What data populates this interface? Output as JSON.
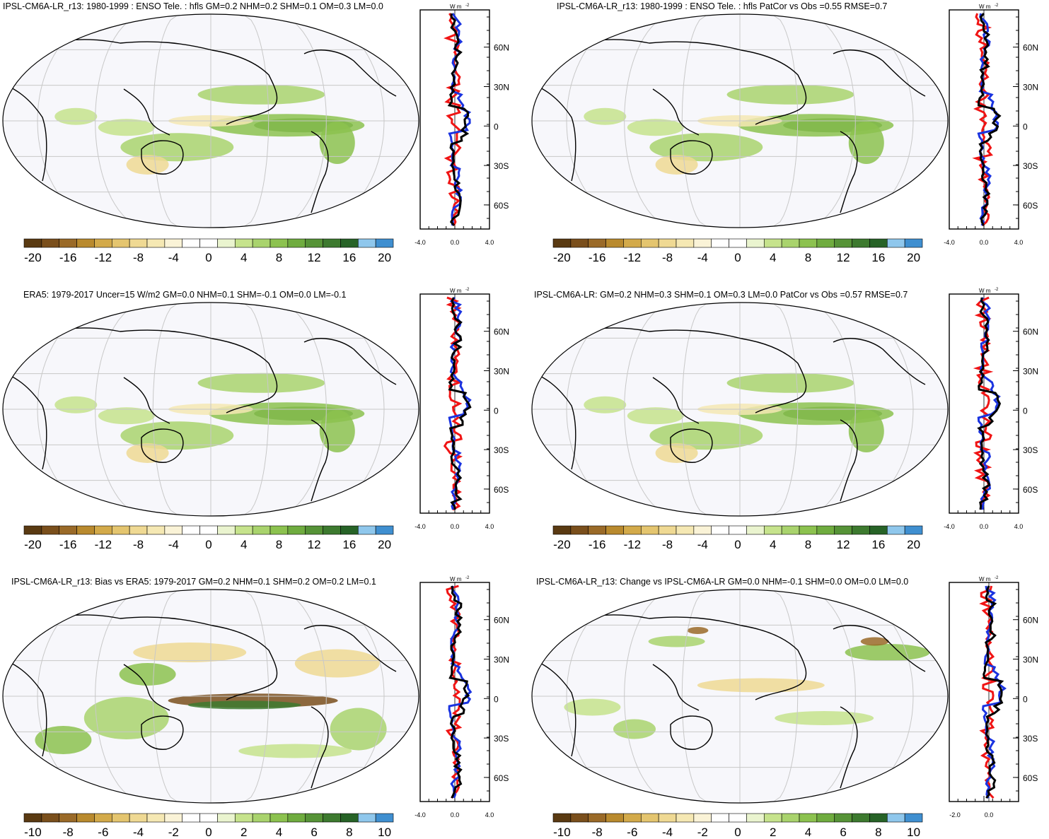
{
  "colorbar": {
    "colors": [
      "#5a3a12",
      "#7a4f1c",
      "#9a6a28",
      "#b98a2e",
      "#d3aa4a",
      "#e4c56f",
      "#efd993",
      "#f5e8b3",
      "#faf3d7",
      "#ffffff",
      "#ffffff",
      "#eaf4cf",
      "#c6e38c",
      "#a9d36d",
      "#8cc24f",
      "#6fac3f",
      "#569337",
      "#3d7a2f",
      "#276327",
      "#8fc7ec",
      "#3f8fd0"
    ],
    "labels_wide": [
      "-20",
      "-16",
      "-12",
      "-8",
      "-4",
      "0",
      "4",
      "8",
      "12",
      "16",
      "20"
    ],
    "labels_narrow": [
      "-10",
      "-8",
      "-6",
      "-4",
      "-2",
      "0",
      "2",
      "4",
      "6",
      "8",
      "10"
    ]
  },
  "profile": {
    "unit": "W m",
    "unit_sup": "-2",
    "lat_labels": [
      "60N",
      "30N",
      "0",
      "30S",
      "60S"
    ],
    "x_labels_wide": [
      "-4.0",
      "0.0",
      "4.0"
    ],
    "x_labels_narrow": [
      "-2.0",
      "0.0"
    ],
    "series_colors": {
      "blue": "#1a33e0",
      "red": "#f01414",
      "black": "#000000"
    }
  },
  "panels": [
    {
      "title": "IPSL-CM6A-LR_r13: 1980-1999 : ENSO Tele. : hfls GM=0.2 NHM=0.2 SHM=0.1 OM=0.3 LM=0.0",
      "scale": "wide"
    },
    {
      "title": "IPSL-CM6A-LR_r13: 1980-1999 : ENSO Tele. : hfls PatCor vs Obs =0.55 RMSE=0.7",
      "scale": "wide"
    },
    {
      "title": "ERA5: 1979-2017 Uncer=15 W/m2 GM=0.0 NHM=0.1 SHM=-0.1 OM=0.0 LM=-0.1",
      "scale": "wide"
    },
    {
      "title": "IPSL-CM6A-LR: GM=0.2 NHM=0.3 SHM=0.1 OM=0.3 LM=0.0 PatCor vs Obs =0.57 RMSE=0.7",
      "scale": "wide"
    },
    {
      "title": "IPSL-CM6A-LR_r13: Bias vs ERA5: 1979-2017 GM=0.2 NHM=0.1 SHM=0.2 OM=0.2 LM=0.1",
      "scale": "narrow"
    },
    {
      "title": "IPSL-CM6A-LR_r13: Change vs IPSL-CM6A-LR GM=0.0 NHM=-0.1 SHM=0.0 OM=0.0 LM=0.0",
      "scale": "narrow"
    }
  ]
}
